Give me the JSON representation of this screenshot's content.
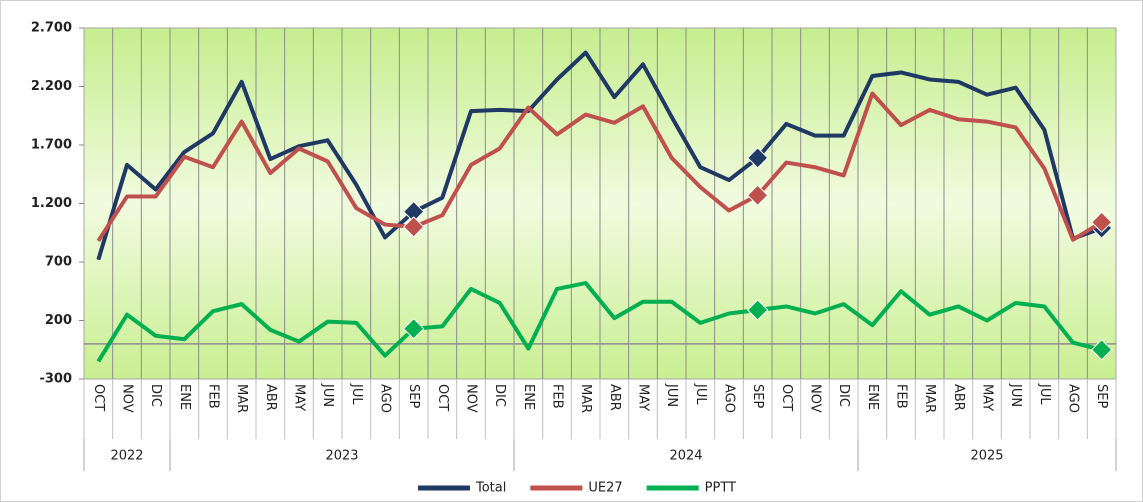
{
  "chart_data": {
    "type": "line",
    "categories": [
      "OCT",
      "NOV",
      "DIC",
      "ENE",
      "FEB",
      "MAR",
      "ABR",
      "MAY",
      "JUN",
      "JUL",
      "AGO",
      "SEP",
      "OCT",
      "NOV",
      "DIC",
      "ENE",
      "FEB",
      "MAR",
      "ABR",
      "MAY",
      "JUN",
      "JUL",
      "AGO",
      "SEP",
      "OCT",
      "NOV",
      "DIC",
      "ENE",
      "FEB",
      "MAR",
      "ABR",
      "MAY",
      "JUN",
      "JUL",
      "AGO",
      "SEP"
    ],
    "x_groups": [
      {
        "label": "2022",
        "span": 3
      },
      {
        "label": "2023",
        "span": 12
      },
      {
        "label": "2024",
        "span": 12
      },
      {
        "label": "2025",
        "span": 9
      }
    ],
    "series": [
      {
        "name": "Total",
        "color": "#1f3864",
        "values": [
          720,
          1530,
          1320,
          1640,
          1800,
          2240,
          1580,
          1690,
          1740,
          1360,
          910,
          1130,
          1250,
          1990,
          2000,
          1990,
          2260,
          2490,
          2110,
          2390,
          1940,
          1510,
          1400,
          1590,
          1880,
          1780,
          1780,
          2290,
          2320,
          2260,
          2240,
          2130,
          2190,
          1830,
          900,
          990
        ]
      },
      {
        "name": "UE27",
        "color": "#c0504d",
        "values": [
          880,
          1260,
          1260,
          1600,
          1510,
          1900,
          1460,
          1670,
          1560,
          1160,
          1020,
          1000,
          1100,
          1530,
          1670,
          2020,
          1790,
          1960,
          1890,
          2030,
          1590,
          1340,
          1140,
          1270,
          1550,
          1510,
          1440,
          2140,
          1870,
          2000,
          1920,
          1900,
          1850,
          1500,
          890,
          1040
        ]
      },
      {
        "name": "PPTT",
        "color": "#00b050",
        "values": [
          -150,
          250,
          70,
          40,
          280,
          340,
          120,
          20,
          190,
          180,
          -100,
          130,
          150,
          470,
          350,
          -40,
          470,
          520,
          220,
          360,
          360,
          180,
          260,
          290,
          320,
          260,
          340,
          160,
          450,
          250,
          320,
          200,
          350,
          320,
          10,
          -50
        ]
      }
    ],
    "marker_indices": [
      11,
      23,
      35
    ],
    "ylim": [
      -300,
      2700
    ],
    "yticks": [
      {
        "value": 2700,
        "label": "2.700"
      },
      {
        "value": 2200,
        "label": "2.200"
      },
      {
        "value": 1700,
        "label": "1.700"
      },
      {
        "value": 1200,
        "label": "1.200"
      },
      700,
      200,
      -300
    ],
    "grid": "vertical",
    "legend": "bottom"
  }
}
